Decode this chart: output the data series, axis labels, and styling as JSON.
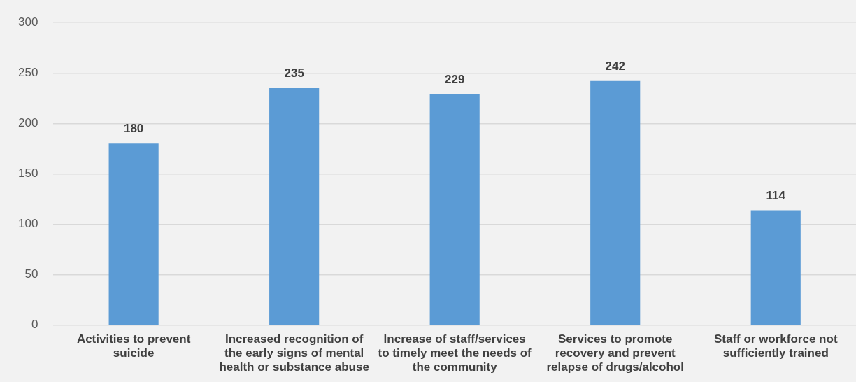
{
  "chart_data": {
    "type": "bar",
    "categories": [
      "Activities to prevent suicide",
      "Increased recognition of the early signs of mental health or substance abuse",
      "Increase of staff/services to timely meet the needs of the community",
      "Services to promote recovery and prevent relapse of drugs/alcohol",
      "Staff or workforce not sufficiently trained"
    ],
    "values": [
      180,
      235,
      229,
      242,
      114
    ],
    "color": "#5b9bd5",
    "ylim": [
      0,
      300
    ],
    "yticks": [
      0,
      50,
      100,
      150,
      200,
      250,
      300
    ],
    "grid": "y",
    "legend": false,
    "data_labels": true
  }
}
